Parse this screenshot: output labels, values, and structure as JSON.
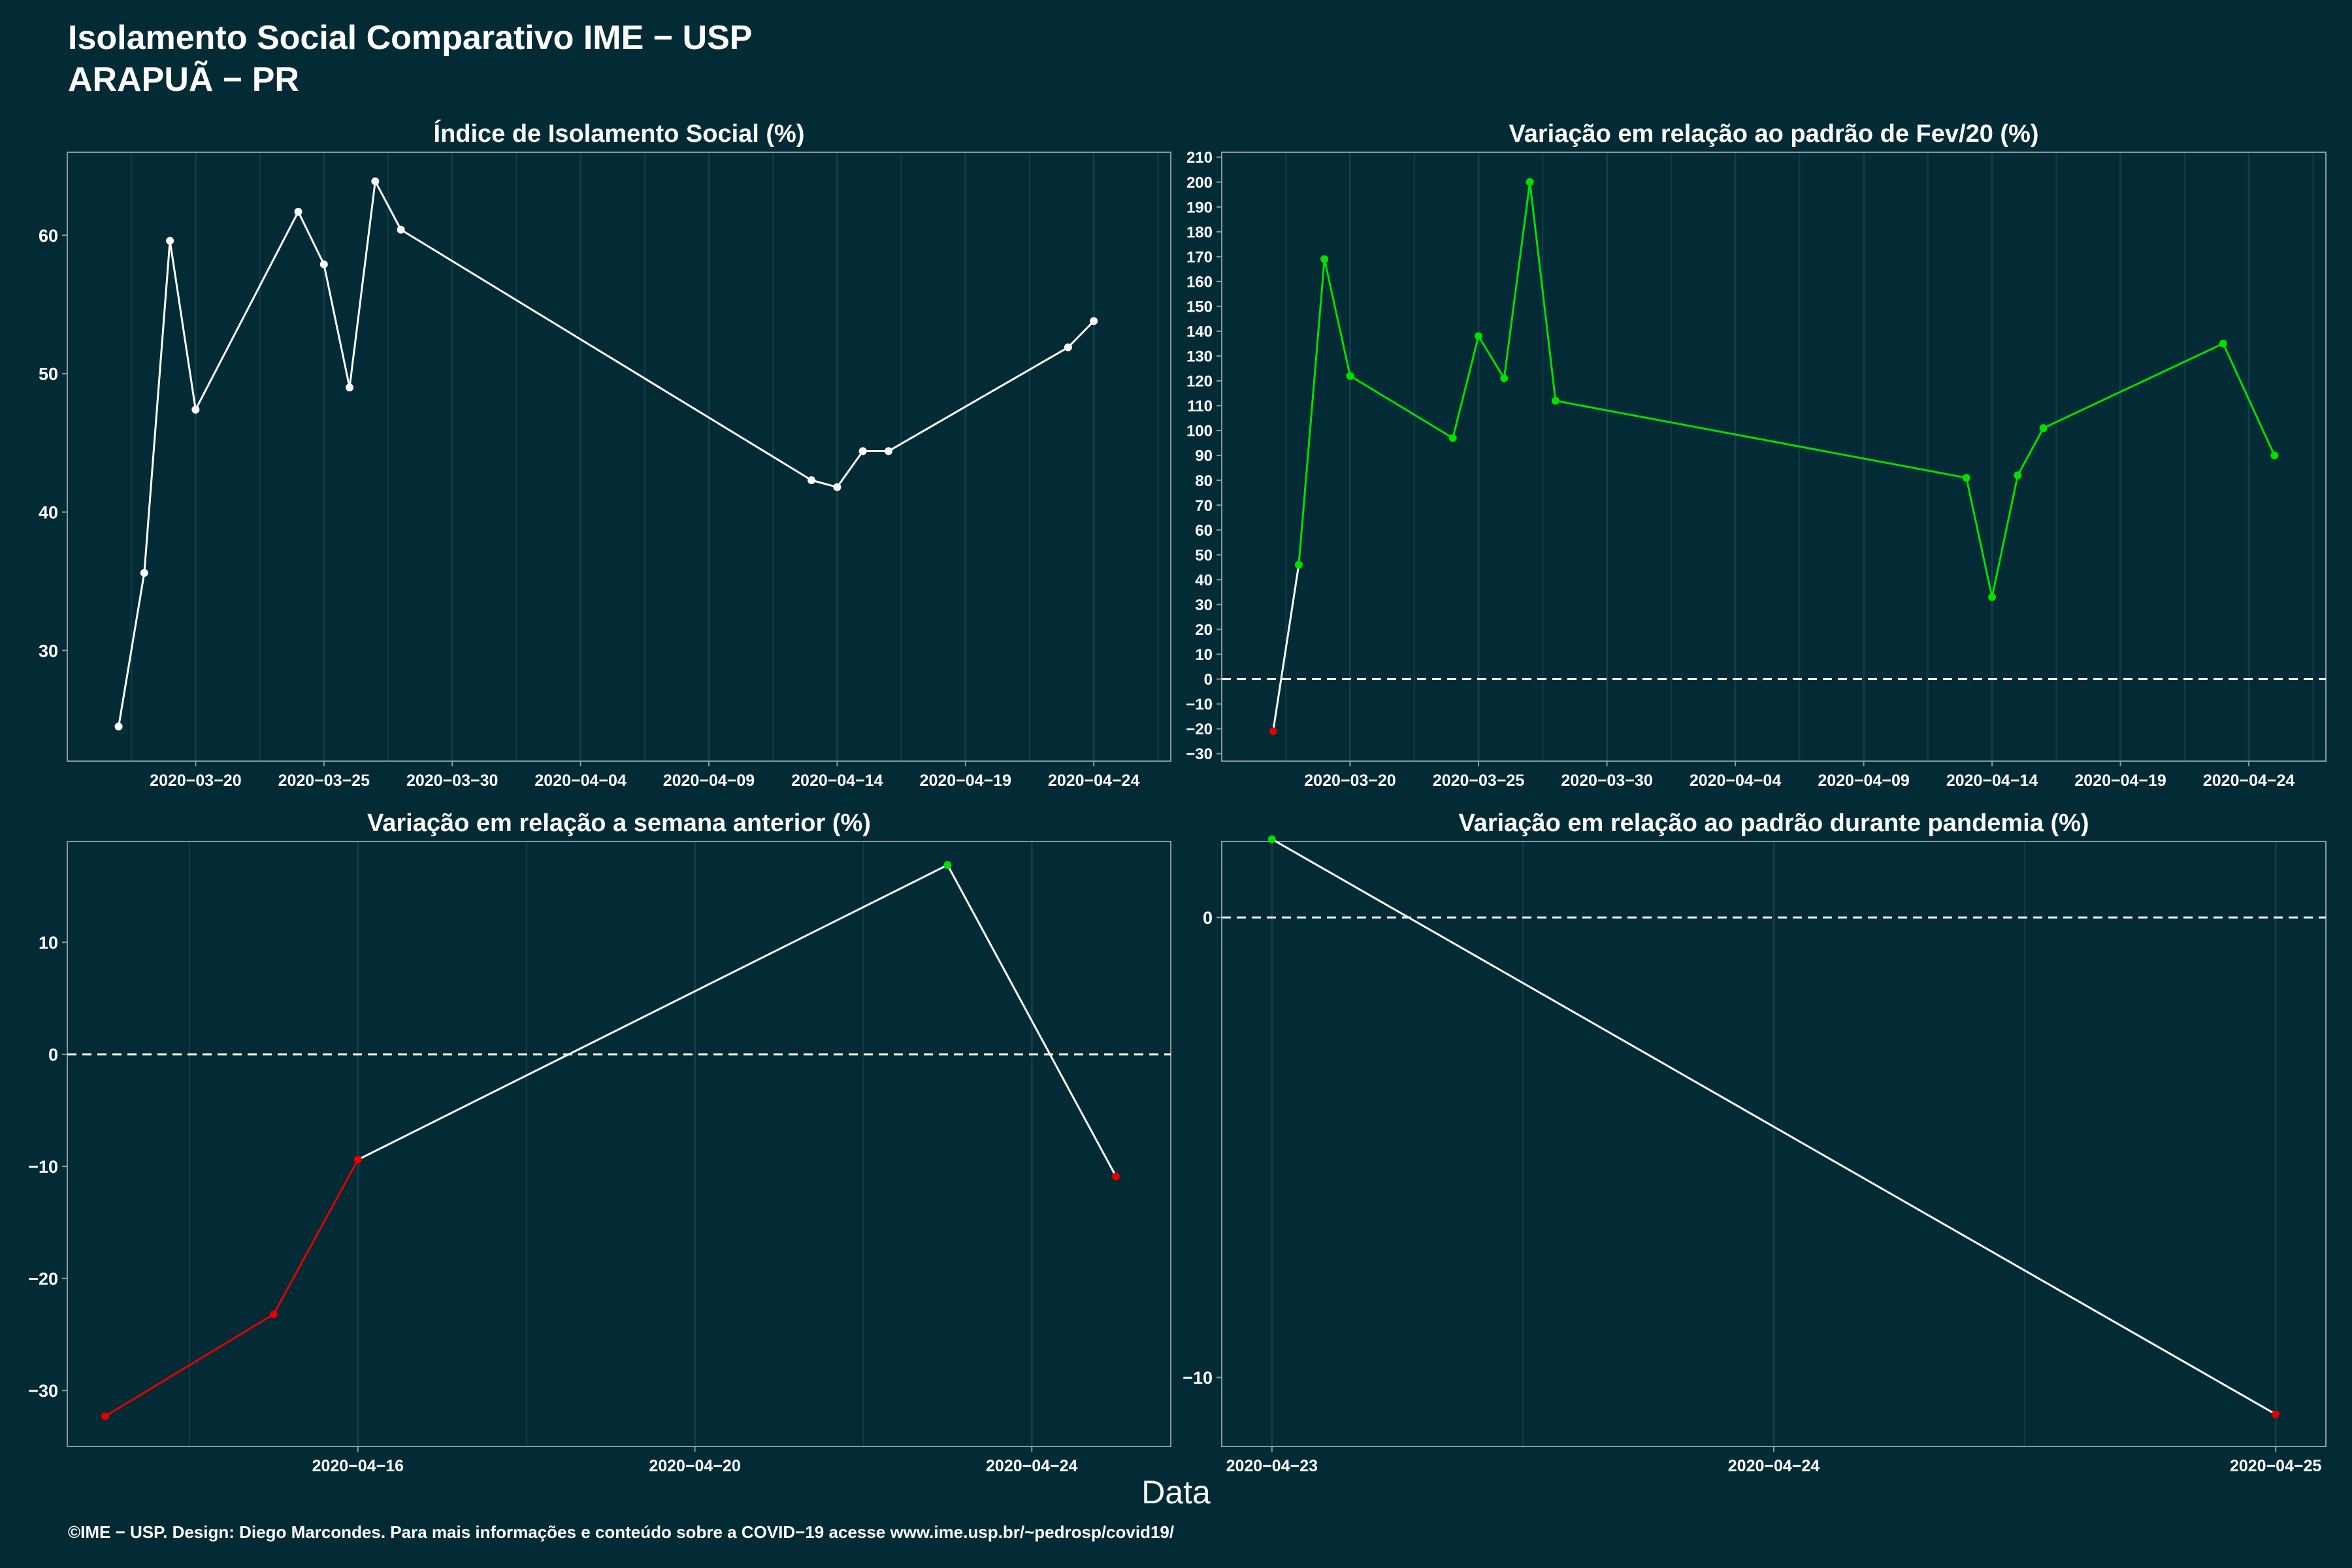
{
  "header": {
    "title": "Isolamento Social Comparativo IME − USP",
    "subtitle": "ARAPUÃ − PR"
  },
  "footer": {
    "text": "©IME − USP. Design: Diego Marcondes. Para mais informações e conteúdo sobre a COVID−19 acesse www.ime.usp.br/~pedrosp/covid19/"
  },
  "xaxis_title": "Data",
  "colors": {
    "background": "#022b36",
    "grid": "#133d48",
    "line": "#ffffff",
    "positive": "#00e000",
    "negative": "#e00000",
    "neutral": "#ffffff"
  },
  "chart_data": [
    {
      "type": "line",
      "title": "Índice de Isolamento Social (%)",
      "xlabel": "",
      "ylabel": "",
      "x_is_date": true,
      "xlim": [
        "2020-03-15",
        "2020-04-27"
      ],
      "ylim": [
        22,
        66
      ],
      "xticks": [
        "2020-03-20",
        "2020-03-25",
        "2020-03-30",
        "2020-04-04",
        "2020-04-09",
        "2020-04-14",
        "2020-04-19",
        "2020-04-24"
      ],
      "yticks": [
        30,
        40,
        50,
        60
      ],
      "series": [
        {
          "x": [
            "2020-03-17",
            "2020-03-18",
            "2020-03-19",
            "2020-03-20",
            "2020-03-24",
            "2020-03-25",
            "2020-03-26",
            "2020-03-27",
            "2020-03-28",
            "2020-04-13",
            "2020-04-14",
            "2020-04-15",
            "2020-04-16",
            "2020-04-23",
            "2020-04-24"
          ],
          "y": [
            24.5,
            35.6,
            59.6,
            47.4,
            61.7,
            57.9,
            49.0,
            63.9,
            60.4,
            42.3,
            41.8,
            44.4,
            44.4,
            51.9,
            53.8
          ],
          "colors": [
            "neutral",
            "neutral",
            "neutral",
            "neutral",
            "neutral",
            "neutral",
            "neutral",
            "neutral",
            "neutral",
            "neutral",
            "neutral",
            "neutral",
            "neutral",
            "neutral",
            "neutral"
          ]
        }
      ],
      "grid": true,
      "zero_line": false
    },
    {
      "type": "line",
      "title": "Variação em relação ao padrão de Fev/20 (%)",
      "xlabel": "",
      "ylabel": "",
      "x_is_date": true,
      "xlim": [
        "2020-03-15",
        "2020-04-27"
      ],
      "ylim": [
        -33,
        212
      ],
      "xticks": [
        "2020-03-20",
        "2020-03-25",
        "2020-03-30",
        "2020-04-04",
        "2020-04-09",
        "2020-04-14",
        "2020-04-19",
        "2020-04-24"
      ],
      "yticks": [
        -30,
        -20,
        -10,
        0,
        10,
        20,
        30,
        40,
        50,
        60,
        70,
        80,
        90,
        100,
        110,
        120,
        130,
        140,
        150,
        160,
        170,
        180,
        190,
        200,
        210
      ],
      "series": [
        {
          "x": [
            "2020-03-17",
            "2020-03-18",
            "2020-03-19",
            "2020-03-20",
            "2020-03-24",
            "2020-03-25",
            "2020-03-26",
            "2020-03-27",
            "2020-03-28",
            "2020-04-13",
            "2020-04-14",
            "2020-04-15",
            "2020-04-16",
            "2020-04-23",
            "2020-04-25"
          ],
          "y": [
            -21,
            46,
            169,
            122,
            97,
            138,
            121,
            200,
            112,
            81,
            33,
            82,
            101,
            135,
            90
          ],
          "colors": [
            "negative",
            "positive",
            "positive",
            "positive",
            "positive",
            "positive",
            "positive",
            "positive",
            "positive",
            "positive",
            "positive",
            "positive",
            "positive",
            "positive",
            "positive"
          ]
        }
      ],
      "grid": true,
      "zero_line": true
    },
    {
      "type": "line",
      "title": "Variação em relação a semana anterior (%)",
      "xlabel": "",
      "ylabel": "",
      "x_is_date": true,
      "xlim": [
        "2020-04-12.55",
        "2020-04-25.65"
      ],
      "ylim": [
        -35,
        19
      ],
      "xticks": [
        "2020-04-16",
        "2020-04-20",
        "2020-04-24"
      ],
      "yticks": [
        -30,
        -20,
        -10,
        0,
        10
      ],
      "series": [
        {
          "x": [
            "2020-04-13",
            "2020-04-15",
            "2020-04-16",
            "2020-04-23",
            "2020-04-25"
          ],
          "y": [
            -32.3,
            -23.2,
            -9.4,
            16.9,
            -10.9
          ],
          "colors": [
            "negative",
            "negative",
            "negative",
            "positive",
            "negative"
          ]
        }
      ],
      "grid": true,
      "zero_line": true
    },
    {
      "type": "line",
      "title": "Variação em relação ao padrão durante pandemia (%)",
      "xlabel": "",
      "ylabel": "",
      "x_is_date": true,
      "xlim": [
        "2020-04-22.9",
        "2020-04-25.1"
      ],
      "ylim": [
        -11.5,
        1.65
      ],
      "xticks": [
        "2020-04-23",
        "2020-04-24",
        "2020-04-25"
      ],
      "yticks": [
        -10,
        0
      ],
      "series": [
        {
          "x": [
            "2020-04-23",
            "2020-04-25"
          ],
          "y": [
            1.7,
            -10.8
          ],
          "colors": [
            "positive",
            "negative"
          ]
        }
      ],
      "grid": true,
      "zero_line": true
    }
  ]
}
